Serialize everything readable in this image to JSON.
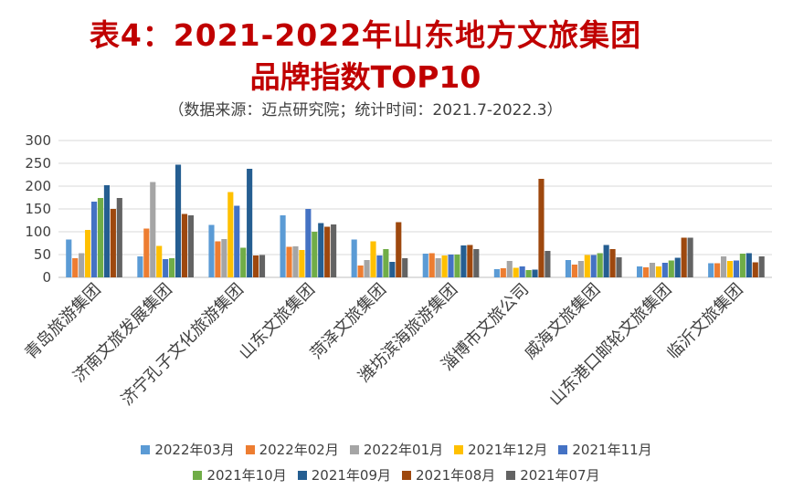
{
  "chart_data": {
    "type": "bar",
    "title_line1": "表4：2021-2022年山东地方文旅集团",
    "title_line2": "品牌指数TOP10",
    "subtitle": "（数据来源：迈点研究院；统计时间：2021.7-2022.3）",
    "xlabel": "",
    "ylabel": "",
    "ylim": [
      0,
      300
    ],
    "yticks": [
      "0",
      "50",
      "100",
      "150",
      "200",
      "250",
      "300"
    ],
    "grid": true,
    "legend_position": "bottom",
    "categories": [
      "青岛旅游集团",
      "济南文旅发展集团",
      "济宁孔子文化旅游集团",
      "山东文旅集团",
      "菏泽文旅集团",
      "潍坊滨海旅游集团",
      "淄博市文旅公司",
      "威海文旅集团",
      "山东港口邮轮文旅集团",
      "临沂文旅集团"
    ],
    "series": [
      {
        "name": "2022年03月",
        "color": "#5b9bd5",
        "values": [
          83,
          46,
          115,
          136,
          83,
          52,
          18,
          38,
          24,
          31
        ]
      },
      {
        "name": "2022年02月",
        "color": "#ed7d31",
        "values": [
          42,
          107,
          79,
          67,
          26,
          53,
          20,
          28,
          22,
          31
        ]
      },
      {
        "name": "2022年01月",
        "color": "#a5a5a5",
        "values": [
          53,
          209,
          84,
          68,
          38,
          42,
          36,
          36,
          32,
          46
        ]
      },
      {
        "name": "2021年12月",
        "color": "#ffc000",
        "values": [
          104,
          69,
          187,
          60,
          79,
          48,
          21,
          49,
          24,
          36
        ]
      },
      {
        "name": "2021年11月",
        "color": "#4472c4",
        "values": [
          166,
          40,
          157,
          150,
          48,
          50,
          24,
          49,
          32,
          37
        ]
      },
      {
        "name": "2021年10月",
        "color": "#70ad47",
        "values": [
          174,
          42,
          65,
          100,
          62,
          50,
          16,
          53,
          37,
          52
        ]
      },
      {
        "name": "2021年09月",
        "color": "#255e91",
        "values": [
          202,
          247,
          238,
          119,
          34,
          70,
          17,
          71,
          43,
          53
        ]
      },
      {
        "name": "2021年08月",
        "color": "#9e480e",
        "values": [
          150,
          139,
          48,
          111,
          121,
          71,
          216,
          62,
          87,
          33
        ]
      },
      {
        "name": "2021年07月",
        "color": "#636363",
        "values": [
          174,
          136,
          49,
          116,
          42,
          62,
          58,
          44,
          87,
          46
        ]
      }
    ]
  }
}
